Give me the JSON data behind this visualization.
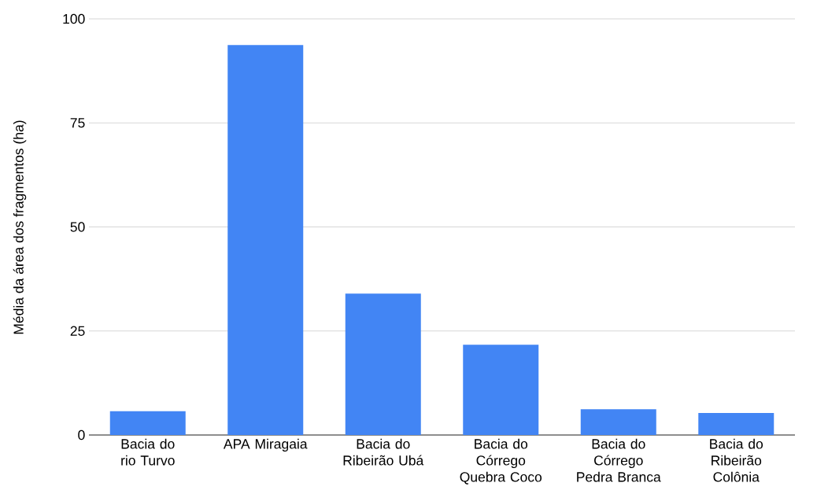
{
  "chart_data": {
    "type": "bar",
    "ylabel": "Média da área dos fragmentos (ha)",
    "categories": [
      "Bacia do rio Turvo",
      "APA Miragaia",
      "Bacia do Ribeirão Ubá",
      "Bacia do Córrego Quebra Coco",
      "Bacia do Córrego Pedra Branca",
      "Bacia do Ribeirão Colônia"
    ],
    "values": [
      5.7,
      93.7,
      34.0,
      21.7,
      6.2,
      5.3
    ],
    "color": "#4285f4",
    "ylim": [
      0,
      100
    ],
    "yticks": [
      0,
      25,
      50,
      75,
      100
    ],
    "grid": "y"
  }
}
